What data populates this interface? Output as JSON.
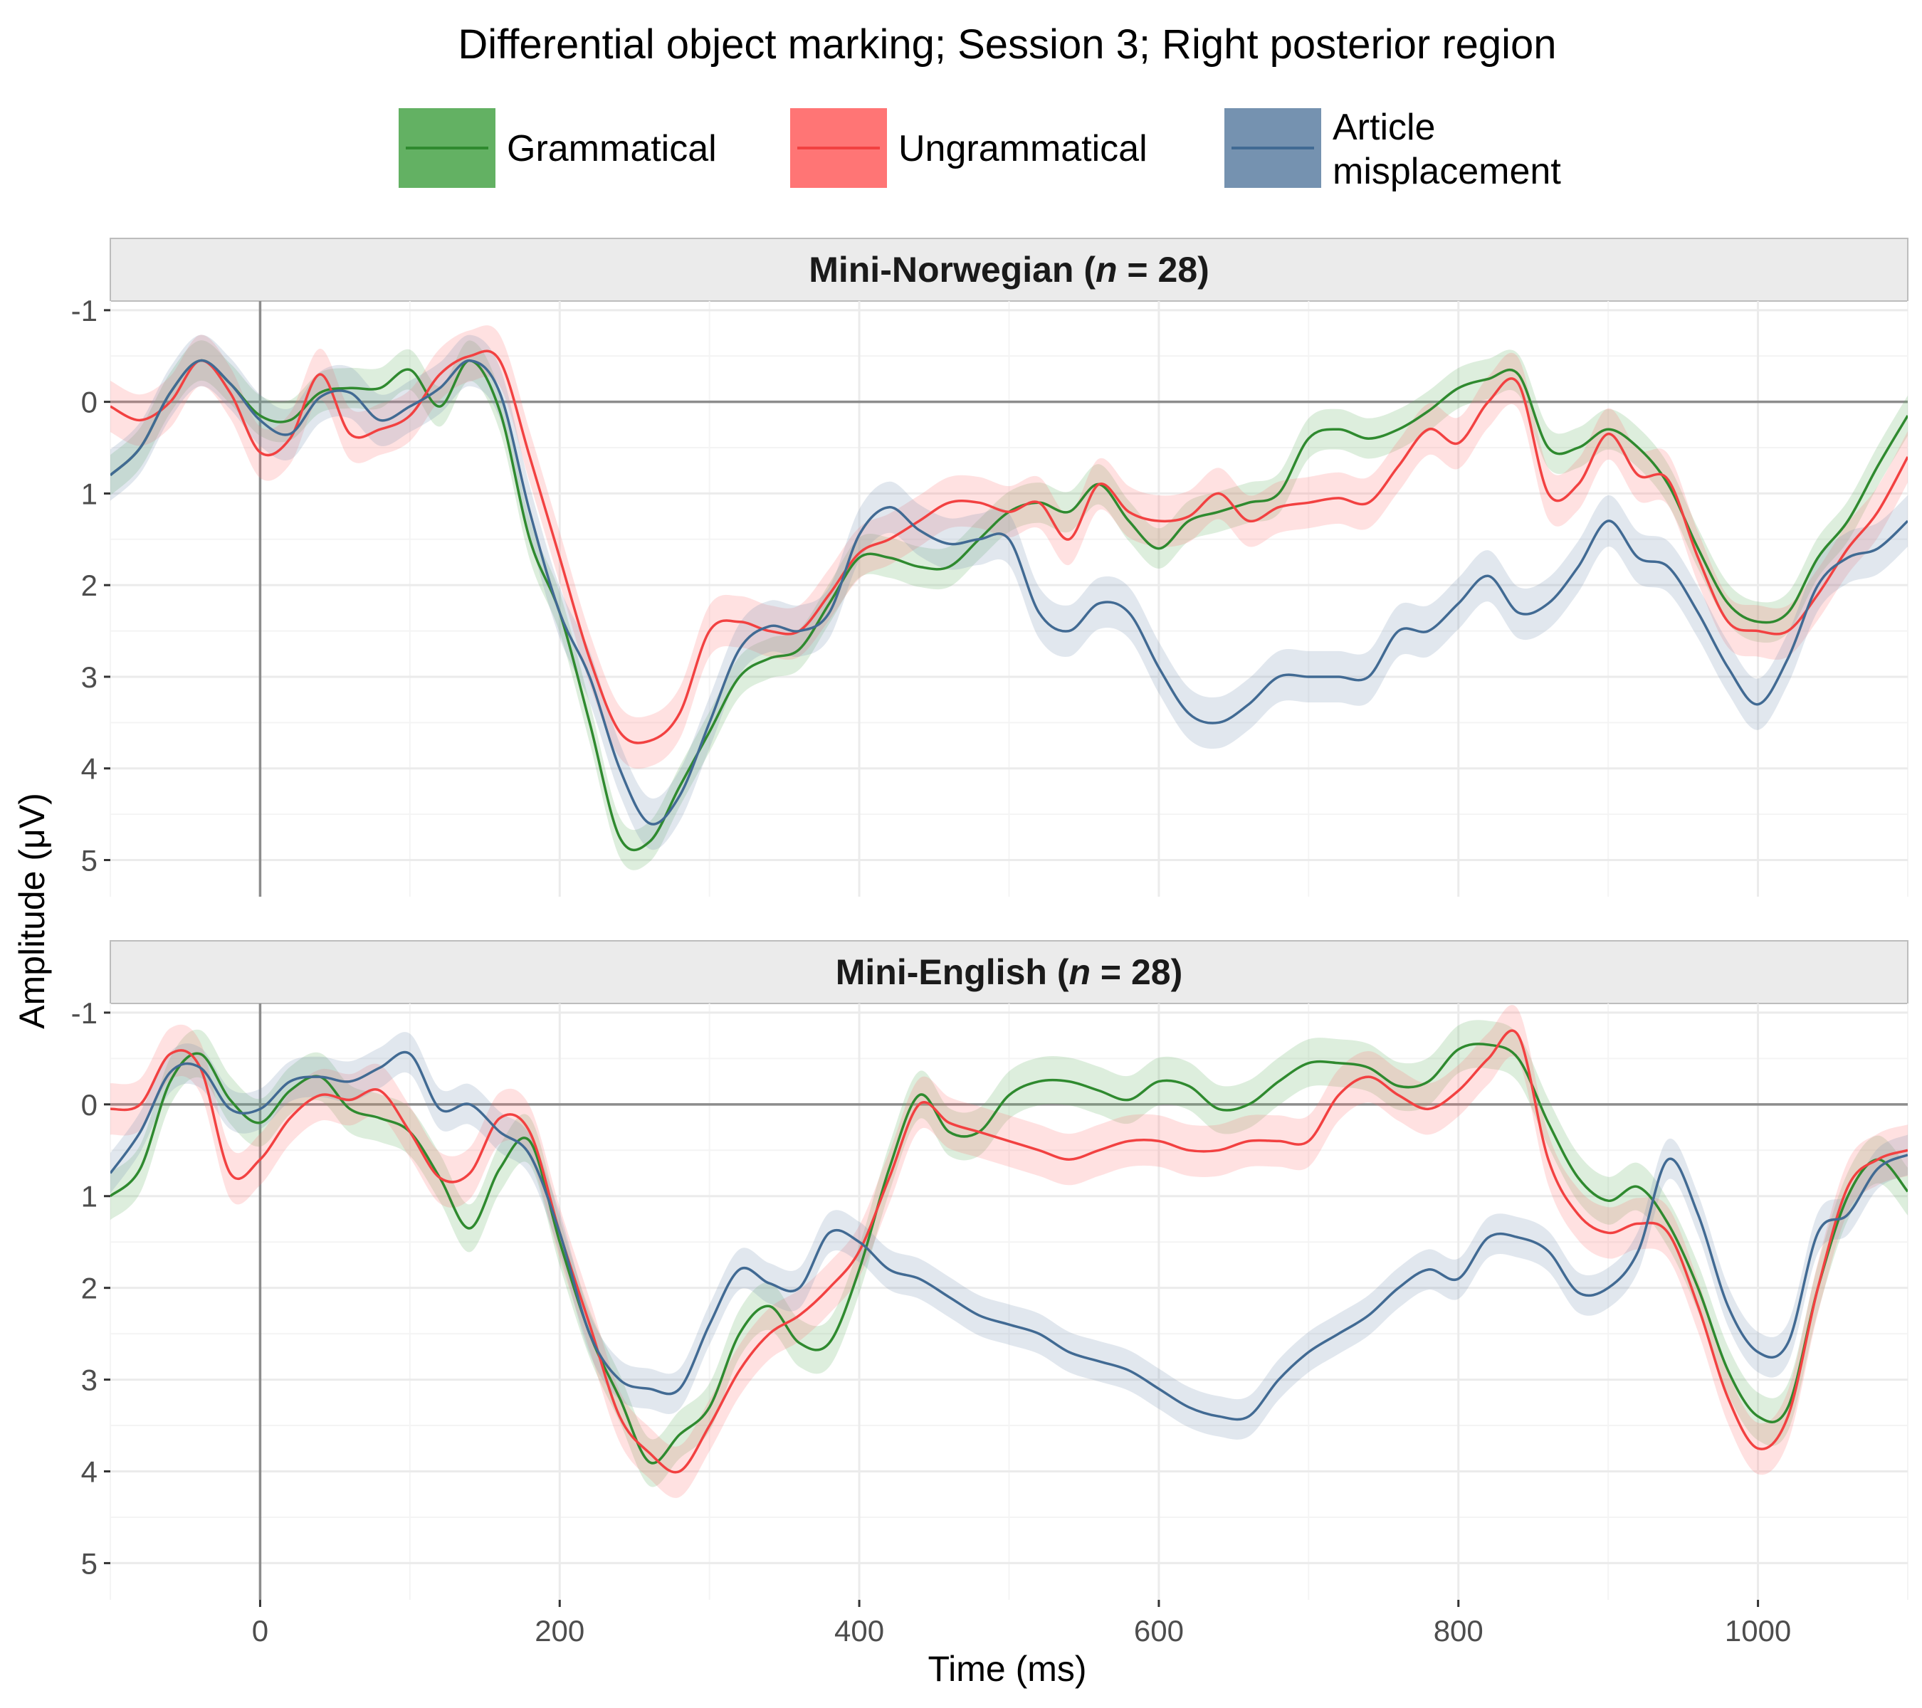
{
  "chart_data": {
    "type": "line",
    "title": "Differential object marking; Session 3; Right posterior region",
    "xlabel": "Time (ms)",
    "ylabel": "Amplitude (μV)",
    "xlim": [
      -100,
      1100
    ],
    "ylim": [
      -1.1,
      5.4
    ],
    "y_reversed": true,
    "x_ticks": [
      0,
      200,
      400,
      600,
      800,
      1000
    ],
    "y_ticks": [
      -1,
      0,
      1,
      2,
      3,
      4,
      5
    ],
    "y_tick_labels": [
      "-1",
      "0",
      "1",
      "2",
      "3",
      "4",
      "5"
    ],
    "grid": true,
    "legend": {
      "position": "top",
      "entries": [
        "Grammatical",
        "Ungrammatical",
        "Article misplacement"
      ]
    },
    "colors": {
      "Grammatical": "#2f8a2f",
      "Ungrammatical": "#f24141",
      "Article misplacement": "#416a93"
    },
    "ribbon_colors": {
      "Grammatical": "#63b163",
      "Ungrammatical": "#ff7575",
      "Article misplacement": "#7592b0"
    },
    "x": [
      -100,
      -80,
      -60,
      -40,
      -20,
      0,
      20,
      40,
      60,
      80,
      100,
      120,
      140,
      160,
      180,
      200,
      220,
      240,
      260,
      280,
      300,
      320,
      340,
      360,
      380,
      400,
      420,
      440,
      460,
      480,
      500,
      520,
      540,
      560,
      580,
      600,
      620,
      640,
      660,
      680,
      700,
      720,
      740,
      760,
      780,
      800,
      820,
      840,
      860,
      880,
      900,
      920,
      940,
      960,
      980,
      1000,
      1020,
      1040,
      1060,
      1080,
      1100
    ],
    "panels": [
      {
        "strip_prefix": "Mini-Norwegian (",
        "strip_n": "n",
        "strip_suffix": " = 28)",
        "series": [
          {
            "name": "Grammatical",
            "values": [
              0.8,
              0.5,
              -0.1,
              -0.45,
              -0.2,
              0.15,
              0.2,
              -0.1,
              -0.15,
              -0.15,
              -0.35,
              0.05,
              -0.45,
              0.1,
              1.5,
              2.3,
              3.5,
              4.75,
              4.8,
              4.2,
              3.6,
              3.0,
              2.8,
              2.7,
              2.2,
              1.7,
              1.7,
              1.8,
              1.8,
              1.5,
              1.2,
              1.1,
              1.2,
              0.9,
              1.3,
              1.6,
              1.3,
              1.2,
              1.1,
              1.0,
              0.4,
              0.3,
              0.4,
              0.3,
              0.1,
              -0.15,
              -0.25,
              -0.3,
              0.5,
              0.5,
              0.3,
              0.5,
              0.9,
              1.6,
              2.2,
              2.4,
              2.3,
              1.7,
              1.3,
              0.7,
              0.15
            ],
            "band": 0.22
          },
          {
            "name": "Ungrammatical",
            "values": [
              0.05,
              0.2,
              0.0,
              -0.45,
              -0.1,
              0.55,
              0.4,
              -0.3,
              0.35,
              0.3,
              0.15,
              -0.3,
              -0.5,
              -0.45,
              0.6,
              1.7,
              2.8,
              3.6,
              3.7,
              3.4,
              2.5,
              2.4,
              2.5,
              2.5,
              2.1,
              1.65,
              1.5,
              1.3,
              1.1,
              1.1,
              1.2,
              1.1,
              1.5,
              0.9,
              1.2,
              1.3,
              1.25,
              1.0,
              1.3,
              1.15,
              1.1,
              1.05,
              1.1,
              0.7,
              0.3,
              0.45,
              0.0,
              -0.2,
              1.0,
              0.9,
              0.35,
              0.8,
              0.85,
              1.7,
              2.4,
              2.5,
              2.5,
              2.1,
              1.6,
              1.2,
              0.6
            ],
            "band": 0.28
          },
          {
            "name": "Article misplacement",
            "values": [
              0.8,
              0.5,
              -0.1,
              -0.45,
              -0.2,
              0.2,
              0.35,
              -0.05,
              -0.1,
              0.2,
              0.05,
              -0.15,
              -0.45,
              -0.1,
              1.2,
              2.3,
              3.0,
              4.0,
              4.6,
              4.3,
              3.5,
              2.7,
              2.45,
              2.5,
              2.3,
              1.45,
              1.15,
              1.4,
              1.55,
              1.5,
              1.5,
              2.3,
              2.5,
              2.2,
              2.3,
              2.9,
              3.4,
              3.5,
              3.3,
              3.0,
              3.0,
              3.0,
              3.0,
              2.5,
              2.5,
              2.2,
              1.9,
              2.3,
              2.2,
              1.8,
              1.3,
              1.7,
              1.8,
              2.3,
              2.9,
              3.3,
              2.8,
              2.0,
              1.7,
              1.6,
              1.3
            ],
            "band": 0.28
          }
        ]
      },
      {
        "strip_prefix": "Mini-English (",
        "strip_n": "n",
        "strip_suffix": " = 28)",
        "series": [
          {
            "name": "Grammatical",
            "values": [
              1.0,
              0.7,
              -0.25,
              -0.55,
              -0.05,
              0.2,
              -0.15,
              -0.3,
              0.05,
              0.15,
              0.3,
              0.8,
              1.35,
              0.7,
              0.4,
              1.5,
              2.5,
              3.2,
              3.9,
              3.6,
              3.3,
              2.5,
              2.2,
              2.6,
              2.6,
              1.8,
              0.7,
              -0.1,
              0.3,
              0.3,
              -0.1,
              -0.25,
              -0.25,
              -0.15,
              -0.05,
              -0.25,
              -0.2,
              0.05,
              0.0,
              -0.25,
              -0.45,
              -0.45,
              -0.4,
              -0.2,
              -0.25,
              -0.6,
              -0.65,
              -0.5,
              0.2,
              0.8,
              1.05,
              0.9,
              1.3,
              2.0,
              2.9,
              3.4,
              3.3,
              2.0,
              1.0,
              0.6,
              0.95
            ],
            "band": 0.26
          },
          {
            "name": "Ungrammatical",
            "values": [
              0.05,
              0.0,
              -0.55,
              -0.4,
              0.75,
              0.6,
              0.15,
              -0.1,
              -0.05,
              -0.15,
              0.3,
              0.8,
              0.75,
              0.15,
              0.3,
              1.4,
              2.4,
              3.4,
              3.8,
              4.0,
              3.5,
              2.9,
              2.5,
              2.3,
              2.0,
              1.6,
              0.8,
              0.0,
              0.2,
              0.3,
              0.4,
              0.5,
              0.6,
              0.5,
              0.4,
              0.4,
              0.5,
              0.5,
              0.4,
              0.4,
              0.4,
              -0.1,
              -0.3,
              -0.1,
              0.05,
              -0.15,
              -0.5,
              -0.75,
              0.6,
              1.2,
              1.4,
              1.3,
              1.4,
              2.2,
              3.2,
              3.75,
              3.4,
              2.0,
              0.9,
              0.6,
              0.5
            ],
            "band": 0.28
          },
          {
            "name": "Article misplacement",
            "values": [
              0.75,
              0.3,
              -0.35,
              -0.4,
              0.05,
              0.05,
              -0.25,
              -0.3,
              -0.25,
              -0.4,
              -0.55,
              0.05,
              0.0,
              0.3,
              0.55,
              1.4,
              2.5,
              3.0,
              3.1,
              3.1,
              2.4,
              1.8,
              1.95,
              2.0,
              1.4,
              1.5,
              1.8,
              1.9,
              2.1,
              2.3,
              2.4,
              2.5,
              2.7,
              2.8,
              2.9,
              3.1,
              3.3,
              3.4,
              3.4,
              3.0,
              2.7,
              2.5,
              2.3,
              2.0,
              1.8,
              1.9,
              1.45,
              1.45,
              1.6,
              2.05,
              2.0,
              1.6,
              0.6,
              1.2,
              2.2,
              2.7,
              2.6,
              1.4,
              1.2,
              0.7,
              0.55
            ],
            "band": 0.22
          }
        ]
      }
    ]
  }
}
